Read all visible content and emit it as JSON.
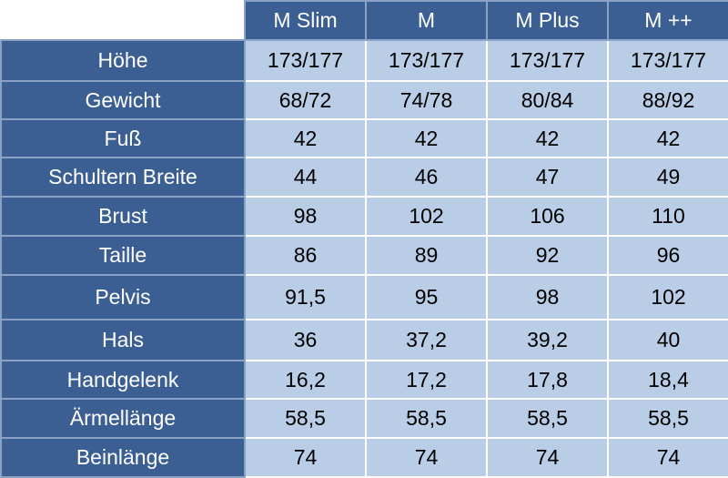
{
  "table": {
    "columns": [
      "M Slim",
      "M",
      "M Plus",
      "M ++"
    ],
    "rows": [
      [
        "Höhe",
        "173/177",
        "173/177",
        "173/177",
        "173/177"
      ],
      [
        "Gewicht",
        "68/72",
        "74/78",
        "80/84",
        "88/92"
      ],
      [
        "Fuß",
        "42",
        "42",
        "42",
        "42"
      ],
      [
        "Schultern Breite",
        "44",
        "46",
        "47",
        "49"
      ],
      [
        "Brust",
        "98",
        "102",
        "106",
        "110"
      ],
      [
        "Taille",
        "86",
        "89",
        "92",
        "96"
      ],
      [
        "Pelvis",
        "91,5",
        "95",
        "98",
        "102"
      ],
      [
        "Hals",
        "36",
        "37,2",
        "39,2",
        "40"
      ],
      [
        "Handgelenk",
        "16,2",
        "17,2",
        "17,8",
        "18,4"
      ],
      [
        "Ärmellänge",
        "58,5",
        "58,5",
        "58,5",
        "58,5"
      ],
      [
        "Beinlänge",
        "74",
        "74",
        "74",
        "74"
      ]
    ]
  }
}
